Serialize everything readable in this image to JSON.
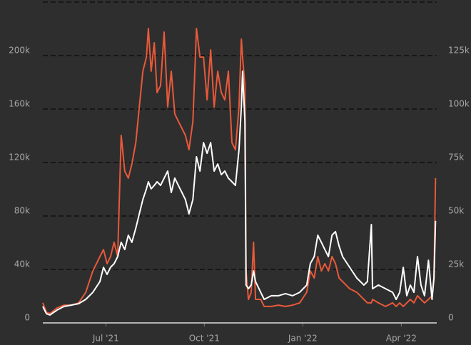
{
  "chart_data": {
    "type": "line",
    "x": [
      2021.34,
      2021.349,
      2021.358,
      2021.376,
      2021.394,
      2021.412,
      2021.431,
      2021.449,
      2021.467,
      2021.485,
      2021.494,
      2021.503,
      2021.512,
      2021.521,
      2021.53,
      2021.539,
      2021.548,
      2021.557,
      2021.566,
      2021.576,
      2021.585,
      2021.594,
      2021.603,
      2021.608,
      2021.615,
      2021.623,
      2021.63,
      2021.639,
      2021.648,
      2021.657,
      2021.666,
      2021.675,
      2021.684,
      2021.693,
      2021.702,
      2021.711,
      2021.721,
      2021.73,
      2021.739,
      2021.748,
      2021.757,
      2021.766,
      2021.775,
      2021.784,
      2021.793,
      2021.802,
      2021.811,
      2021.82,
      2021.829,
      2021.838,
      2021.844,
      2021.847,
      2021.853,
      2021.856,
      2021.862,
      2021.869,
      2021.875,
      2021.88,
      2021.893,
      2021.902,
      2021.92,
      2021.938,
      2021.956,
      2021.974,
      2021.992,
      2022.01,
      2022.019,
      2022.029,
      2022.038,
      2022.047,
      2022.056,
      2022.065,
      2022.074,
      2022.083,
      2022.092,
      2022.101,
      2022.119,
      2022.137,
      2022.155,
      2022.164,
      2022.174,
      2022.177,
      2022.192,
      2022.21,
      2022.228,
      2022.237,
      2022.246,
      2022.255,
      2022.264,
      2022.273,
      2022.282,
      2022.291,
      2022.3,
      2022.309,
      2022.319,
      2022.328,
      2022.333,
      2022.337
    ],
    "xlim": [
      2021.34,
      2022.34
    ],
    "xticks": [
      {
        "value": 2021.5,
        "label": "Jul '21"
      },
      {
        "value": 2021.75,
        "label": "Oct '21"
      },
      {
        "value": 2022.0,
        "label": "Jan '22"
      },
      {
        "value": 2022.25,
        "label": "Apr '22"
      }
    ],
    "ylim": [
      0,
      240000
    ],
    "yticks": [
      0,
      {
        "value": 40000,
        "label": "40k"
      },
      {
        "value": 80000,
        "label": "80k"
      },
      {
        "value": 120000,
        "label": "120k"
      },
      {
        "value": 160000,
        "label": "160k"
      },
      {
        "value": 200000,
        "label": "200k"
      }
    ],
    "y2lim": [
      0,
      150000
    ],
    "y2ticks": [
      0,
      {
        "value": 25000,
        "label": "25k"
      },
      {
        "value": 50000,
        "label": "50k"
      },
      {
        "value": 75000,
        "label": "75k"
      },
      {
        "value": 100000,
        "label": "100k"
      },
      {
        "value": 125000,
        "label": "125k"
      }
    ],
    "grid": true,
    "series": [
      {
        "color": "#e8593a",
        "values": [
          15000,
          8000,
          7000,
          11200,
          13300,
          13300,
          15000,
          22900,
          38900,
          49600,
          54900,
          44300,
          49600,
          60300,
          49600,
          140300,
          113600,
          108300,
          118900,
          134900,
          161600,
          188300,
          198900,
          220300,
          188300,
          209600,
          172300,
          177600,
          217600,
          161600,
          188300,
          156300,
          150900,
          145600,
          140300,
          129600,
          150900,
          220300,
          198900,
          198900,
          166900,
          204300,
          161600,
          188300,
          172300,
          166900,
          188300,
          134900,
          129600,
          161600,
          212300,
          198900,
          177600,
          38900,
          17600,
          22900,
          60300,
          17600,
          17600,
          12300,
          12300,
          13300,
          12300,
          13300,
          15000,
          22900,
          38900,
          33600,
          49600,
          38900,
          44300,
          38900,
          49600,
          44300,
          33600,
          30900,
          25600,
          22900,
          17600,
          15000,
          15000,
          17600,
          15000,
          12300,
          15000,
          12300,
          15000,
          12300,
          15000,
          17600,
          15000,
          20300,
          17600,
          15000,
          17600,
          20300,
          33600,
          108300
        ]
      },
      {
        "color": "#ffffff",
        "axis": "y2",
        "values": [
          7700,
          4300,
          3700,
          6000,
          7700,
          8300,
          9000,
          11000,
          14300,
          19300,
          26000,
          22700,
          26000,
          27700,
          31000,
          37700,
          34300,
          41000,
          37700,
          44300,
          51000,
          57700,
          62700,
          66000,
          62700,
          64300,
          66000,
          64300,
          67700,
          71000,
          61000,
          67700,
          64300,
          61000,
          57700,
          51000,
          57700,
          77700,
          71000,
          84300,
          79300,
          84300,
          71000,
          74300,
          69300,
          71000,
          67700,
          66000,
          64300,
          81000,
          101000,
          117700,
          94300,
          17700,
          16000,
          17700,
          24300,
          19300,
          14300,
          11000,
          12700,
          12700,
          13700,
          12700,
          14300,
          17700,
          27700,
          31000,
          41000,
          37700,
          34300,
          31000,
          41000,
          42700,
          36000,
          31000,
          26000,
          21000,
          17700,
          19300,
          46000,
          16000,
          17700,
          16000,
          14300,
          11000,
          14300,
          26000,
          12700,
          17700,
          14300,
          31000,
          17700,
          12700,
          29300,
          11000,
          21000,
          47700
        ]
      }
    ]
  }
}
